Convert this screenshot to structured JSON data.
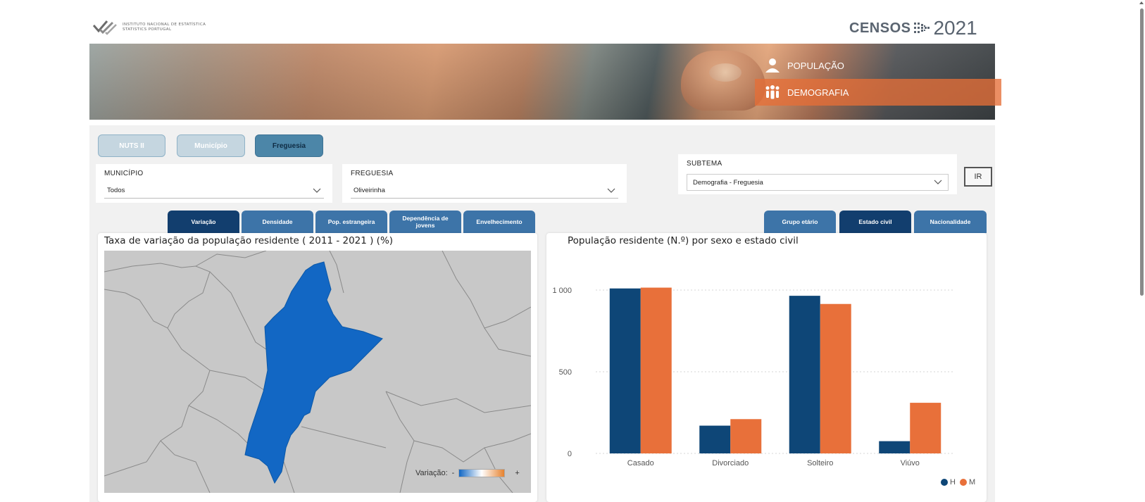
{
  "header": {
    "institute_line1": "Instituto Nacional de Estatística",
    "institute_line2": "Statistics Portugal",
    "censos_word": "CENSOS",
    "censos_year": "2021"
  },
  "banner": {
    "topics": [
      {
        "label": "POPULAÇÃO",
        "icon": "person-icon"
      },
      {
        "label": "DEMOGRAFIA",
        "icon": "group-icon",
        "active": true
      }
    ]
  },
  "level_buttons": [
    {
      "label": "NUTS II",
      "active": false
    },
    {
      "label": "Município",
      "active": false
    },
    {
      "label": "Freguesia",
      "active": true
    }
  ],
  "filters": {
    "municipio": {
      "label": "MUNICÍPIO",
      "value": "Todos"
    },
    "freguesia": {
      "label": "FREGUESIA",
      "value": "Oliveirinha"
    },
    "subtema": {
      "label": "SUBTEMA",
      "value": "Demografia - Freguesia"
    },
    "go_label": "IR"
  },
  "left_tabs": [
    {
      "label": "Variação",
      "active": true
    },
    {
      "label": "Densidade",
      "active": false
    },
    {
      "label": "Pop. estrangeira",
      "active": false
    },
    {
      "label": "Dependência de jovens",
      "active": false
    },
    {
      "label": "Envelhecimento",
      "active": false
    }
  ],
  "right_tabs": [
    {
      "label": "Grupo etário",
      "active": false
    },
    {
      "label": "Estado civil",
      "active": true
    },
    {
      "label": "Nacionalidade",
      "active": false
    }
  ],
  "map": {
    "title": "Taxa de variação da população residente ( 2011 - 2021 ) (%)",
    "legend_label": "Variação:",
    "legend_min": "-",
    "legend_max": "+",
    "colors": {
      "highlight": "#1267c4",
      "other": "#c8c8c8",
      "border": "#8a8a8a"
    }
  },
  "chart_data": {
    "type": "bar",
    "title": "População residente (N.º) por sexo e estado civil",
    "categories": [
      "Casado",
      "Divorciado",
      "Solteiro",
      "Viúvo"
    ],
    "series": [
      {
        "name": "H",
        "color": "#0e4677",
        "values": [
          1010,
          170,
          965,
          75
        ]
      },
      {
        "name": "M",
        "color": "#e8703a",
        "values": [
          1015,
          210,
          915,
          310
        ]
      }
    ],
    "yticks": [
      0,
      500,
      1000
    ],
    "ytick_labels": [
      "0",
      "500",
      "1 000"
    ],
    "ylim": [
      0,
      1000
    ],
    "legend_position": "bottom-right",
    "grid": true
  }
}
